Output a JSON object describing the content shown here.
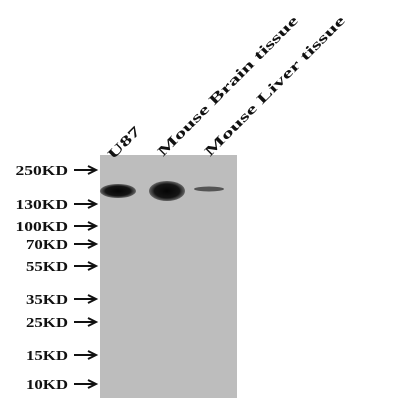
{
  "lanes": [
    {
      "label": "U87"
    },
    {
      "label": "Mouse Brain tissue"
    },
    {
      "label": "Mouse Liver tissue"
    }
  ],
  "markers": [
    {
      "label": "250KD"
    },
    {
      "label": "130KD"
    },
    {
      "label": "100KD"
    },
    {
      "label": "70KD"
    },
    {
      "label": "55KD"
    },
    {
      "label": "35KD"
    },
    {
      "label": "25KD"
    },
    {
      "label": "15KD"
    },
    {
      "label": "10KD"
    }
  ]
}
